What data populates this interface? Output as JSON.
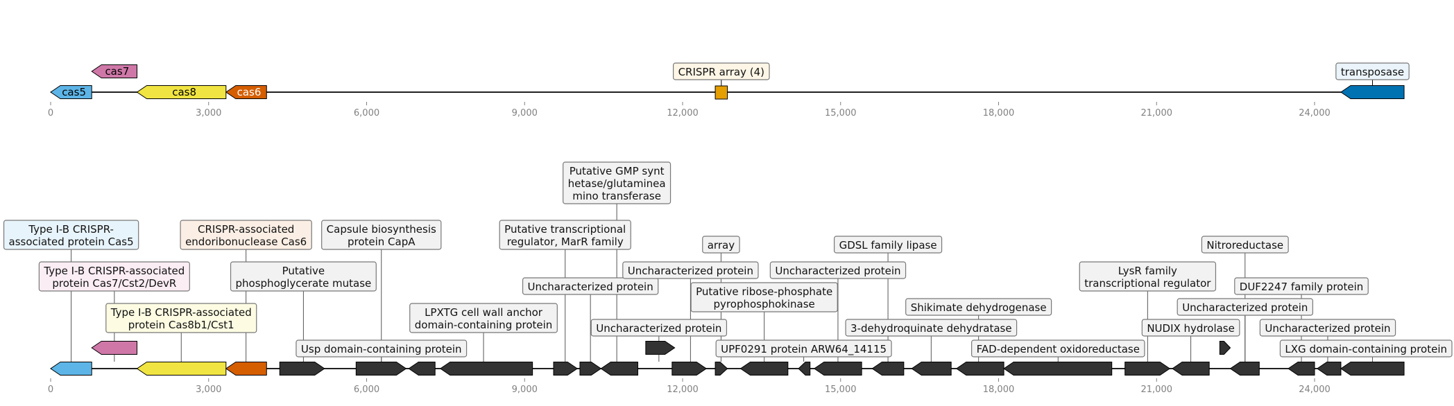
{
  "colors": {
    "cas5": "#5DB4E6",
    "cas7": "#CF78A8",
    "cas8": "#F0E442",
    "cas6": "#D55E00",
    "crispr": "#E69F00",
    "transposase": "#0072B2",
    "dark": "#333333",
    "axis": "#808080"
  },
  "top_track": {
    "axis_ticks": [
      "0",
      "3,000",
      "6,000",
      "9,000",
      "12,000",
      "15,000",
      "18,000",
      "21,000",
      "24,000"
    ],
    "features": [
      {
        "id": "cas5",
        "label": "cas5",
        "start": 0,
        "end": 780,
        "strand": "-",
        "color": "cas5",
        "row": 0
      },
      {
        "id": "cas7",
        "label": "cas7",
        "start": 780,
        "end": 1640,
        "strand": "-",
        "color": "cas7",
        "row": 1
      },
      {
        "id": "cas8",
        "label": "cas8",
        "start": 1640,
        "end": 3330,
        "strand": "-",
        "color": "cas8",
        "row": 0
      },
      {
        "id": "cas6",
        "label": "cas6",
        "start": 3330,
        "end": 4100,
        "strand": "-",
        "color": "cas6",
        "row": 0
      },
      {
        "id": "transposase",
        "label": "transposase",
        "start": 24500,
        "end": 25700,
        "strand": "-",
        "color": "transposase",
        "row": 0
      }
    ],
    "crispr_array": {
      "label": "CRISPR array (4)",
      "start": 12620,
      "end": 12850,
      "color": "crispr"
    }
  },
  "bottom_track": {
    "axis_ticks": [
      "0",
      "3,000",
      "6,000",
      "9,000",
      "12,000",
      "15,000",
      "18,000",
      "21,000",
      "24,000"
    ],
    "genes": [
      {
        "start": 0,
        "end": 780,
        "strand": "-",
        "color": "cas5",
        "row": 0
      },
      {
        "start": 780,
        "end": 1640,
        "strand": "-",
        "color": "cas7",
        "row": 1
      },
      {
        "start": 1640,
        "end": 3330,
        "strand": "-",
        "color": "cas8",
        "row": 0
      },
      {
        "start": 3330,
        "end": 4100,
        "strand": "-",
        "color": "cas6",
        "row": 0
      },
      {
        "start": 4350,
        "end": 5200,
        "strand": "+",
        "color": "dark",
        "row": 0
      },
      {
        "start": 5800,
        "end": 6750,
        "strand": "+",
        "color": "dark",
        "row": 0
      },
      {
        "start": 6800,
        "end": 7300,
        "strand": "-",
        "color": "dark",
        "row": 0
      },
      {
        "start": 7400,
        "end": 9150,
        "strand": "-",
        "color": "dark",
        "row": 0
      },
      {
        "start": 9550,
        "end": 10000,
        "strand": "+",
        "color": "dark",
        "row": 0
      },
      {
        "start": 10050,
        "end": 10450,
        "strand": "+",
        "color": "dark",
        "row": 0
      },
      {
        "start": 10450,
        "end": 11150,
        "strand": "-",
        "color": "dark",
        "row": 0
      },
      {
        "start": 11300,
        "end": 11850,
        "strand": "+",
        "color": "dark",
        "row": 1
      },
      {
        "start": 11800,
        "end": 12450,
        "strand": "+",
        "color": "dark",
        "row": 0
      },
      {
        "start": 12620,
        "end": 12850,
        "strand": "+",
        "color": "dark",
        "row": 0
      },
      {
        "start": 13100,
        "end": 14000,
        "strand": "-",
        "color": "dark",
        "row": 0
      },
      {
        "start": 14200,
        "end": 14420,
        "strand": "-",
        "color": "dark",
        "row": 0
      },
      {
        "start": 14500,
        "end": 15400,
        "strand": "-",
        "color": "dark",
        "row": 0
      },
      {
        "start": 15600,
        "end": 16200,
        "strand": "-",
        "color": "dark",
        "row": 0
      },
      {
        "start": 16350,
        "end": 17100,
        "strand": "-",
        "color": "dark",
        "row": 0
      },
      {
        "start": 17200,
        "end": 18100,
        "strand": "-",
        "color": "dark",
        "row": 0
      },
      {
        "start": 18100,
        "end": 20150,
        "strand": "-",
        "color": "dark",
        "row": 0
      },
      {
        "start": 20400,
        "end": 21250,
        "strand": "+",
        "color": "dark",
        "row": 0
      },
      {
        "start": 21300,
        "end": 22000,
        "strand": "-",
        "color": "dark",
        "row": 0
      },
      {
        "start": 22200,
        "end": 22400,
        "strand": "+",
        "color": "dark",
        "row": 1
      },
      {
        "start": 22400,
        "end": 22950,
        "strand": "-",
        "color": "dark",
        "row": 0
      },
      {
        "start": 23500,
        "end": 24000,
        "strand": "-",
        "color": "dark",
        "row": 0
      },
      {
        "start": 24050,
        "end": 24500,
        "strand": "-",
        "color": "dark",
        "row": 0
      },
      {
        "start": 24500,
        "end": 25700,
        "strand": "-",
        "color": "dark",
        "row": 0
      }
    ],
    "annotations": [
      {
        "lines": [
          "Type I-B CRISPR-",
          "associated protein Cas5"
        ],
        "anchor": 390,
        "fill": "#E8F4FB"
      },
      {
        "lines": [
          "Type I-B CRISPR-associated",
          "protein Cas7/Cst2/DevR"
        ],
        "anchor": 1210,
        "fill": "#FBEDF4"
      },
      {
        "lines": [
          "Type I-B CRISPR-associated",
          "protein Cas8b1/Cst1"
        ],
        "anchor": 2480,
        "fill": "#FDFCE3"
      },
      {
        "lines": [
          "CRISPR-associated",
          "endoribonuclease Cas6"
        ],
        "anchor": 3710,
        "fill": "#FBEFE5"
      },
      {
        "lines": [
          "Putative",
          "phosphoglycerate mutase"
        ],
        "anchor": 4800,
        "fill": "#F2F2F2"
      },
      {
        "lines": [
          "Capsule biosynthesis",
          "protein CapA"
        ],
        "anchor": 6280,
        "fill": "#F2F2F2"
      },
      {
        "lines": [
          "Usp domain-containing protein"
        ],
        "anchor": 6280,
        "fill": "#F2F2F2"
      },
      {
        "lines": [
          "LPXTG cell wall anchor",
          "domain-containing protein"
        ],
        "anchor": 8220,
        "fill": "#F2F2F2"
      },
      {
        "lines": [
          "Putative GMP synt",
          "hetase/glutaminea",
          "mino transferase"
        ],
        "anchor": 10750,
        "fill": "#F2F2F2"
      },
      {
        "lines": [
          "Putative transcriptional",
          "regulator, MarR family"
        ],
        "anchor": 9770,
        "fill": "#F2F2F2"
      },
      {
        "lines": [
          "Uncharacterized protein"
        ],
        "anchor": 10250,
        "fill": "#F2F2F2"
      },
      {
        "lines": [
          "Uncharacterized protein"
        ],
        "anchor": 11550,
        "fill": "#F2F2F2"
      },
      {
        "lines": [
          "Uncharacterized protein"
        ],
        "anchor": 12150,
        "fill": "#F2F2F2"
      },
      {
        "lines": [
          "array"
        ],
        "anchor": 12730,
        "fill": "#F2F2F2"
      },
      {
        "lines": [
          "Putative ribose-phosphate",
          "pyrophosphokinase"
        ],
        "anchor": 13550,
        "fill": "#F2F2F2"
      },
      {
        "lines": [
          "UPF0291 protein ARW64_14115"
        ],
        "anchor": 14300,
        "fill": "#F2F2F2"
      },
      {
        "lines": [
          "Uncharacterized protein"
        ],
        "anchor": 14950,
        "fill": "#F2F2F2"
      },
      {
        "lines": [
          "GDSL family lipase"
        ],
        "anchor": 15900,
        "fill": "#F2F2F2"
      },
      {
        "lines": [
          "3-dehydroquinate dehydratase"
        ],
        "anchor": 16720,
        "fill": "#F2F2F2"
      },
      {
        "lines": [
          "Shikimate dehydrogenase"
        ],
        "anchor": 17620,
        "fill": "#F2F2F2"
      },
      {
        "lines": [
          "FAD-dependent oxidoreductase"
        ],
        "anchor": 19130,
        "fill": "#F2F2F2"
      },
      {
        "lines": [
          "LysR family",
          "transcriptional regulator"
        ],
        "anchor": 20830,
        "fill": "#F2F2F2"
      },
      {
        "lines": [
          "NUDIX hydrolase"
        ],
        "anchor": 21650,
        "fill": "#F2F2F2"
      },
      {
        "lines": [
          "Nitroreductase"
        ],
        "anchor": 22680,
        "fill": "#F2F2F2"
      },
      {
        "lines": [
          "Uncharacterized protein"
        ],
        "anchor": 22680,
        "fill": "#F2F2F2"
      },
      {
        "lines": [
          "DUF2247 family protein"
        ],
        "anchor": 23750,
        "fill": "#F2F2F2"
      },
      {
        "lines": [
          "Uncharacterized protein"
        ],
        "anchor": 24250,
        "fill": "#F2F2F2"
      },
      {
        "lines": [
          "LXG domain-containing protein"
        ],
        "anchor": 25100,
        "fill": "#F2F2F2"
      }
    ]
  }
}
